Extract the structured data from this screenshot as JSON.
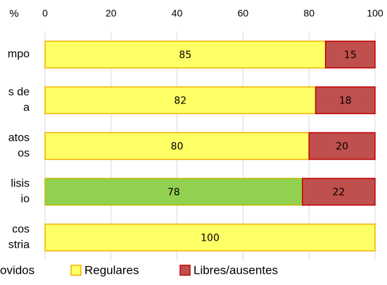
{
  "chart_data": {
    "type": "stacked-bar-horizontal",
    "axis_label": "%",
    "categories": [
      [
        "mpo"
      ],
      [
        "s de",
        "a"
      ],
      [
        "atos",
        "os"
      ],
      [
        "lisis",
        "io"
      ],
      [
        "cos",
        "stria"
      ]
    ],
    "series": [
      {
        "name": "ovidos",
        "color": "#92d050",
        "border": "#c0c000",
        "values": [
          null,
          null,
          null,
          78,
          null
        ]
      },
      {
        "name": "Regulares",
        "color": "#ffff66",
        "border": "#f0b000",
        "values": [
          85,
          82,
          80,
          null,
          100
        ]
      },
      {
        "name": "Libres/ausentes",
        "color": "#c0504d",
        "border": "#c00000",
        "values": [
          15,
          18,
          20,
          22,
          null
        ]
      }
    ],
    "xlim": [
      0,
      100
    ],
    "xticks": [
      0,
      20,
      40,
      60,
      80,
      100
    ],
    "grid": true
  }
}
